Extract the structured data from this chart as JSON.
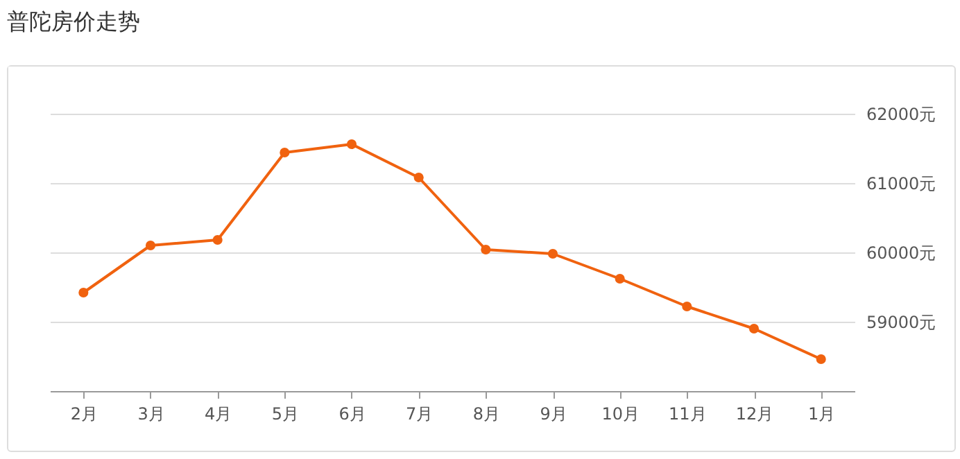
{
  "chart_data": {
    "type": "line",
    "title": "普陀房价走势",
    "categories": [
      "2月",
      "3月",
      "4月",
      "5月",
      "6月",
      "7月",
      "8月",
      "9月",
      "10月",
      "11月",
      "12月",
      "1月"
    ],
    "series": [
      {
        "color": "#f0620f",
        "values": [
          59420,
          60100,
          60180,
          61440,
          61560,
          61080,
          60040,
          59980,
          59620,
          59220,
          58900,
          58460
        ]
      }
    ],
    "ylim": [
      58000,
      62000
    ],
    "yticks": [
      {
        "value": 59000,
        "label": "59000元"
      },
      {
        "value": 60000,
        "label": "60000元"
      },
      {
        "value": 61000,
        "label": "61000元"
      },
      {
        "value": 62000,
        "label": "62000元"
      }
    ],
    "grid": "y",
    "marker": "circle",
    "line_style": "solid"
  }
}
